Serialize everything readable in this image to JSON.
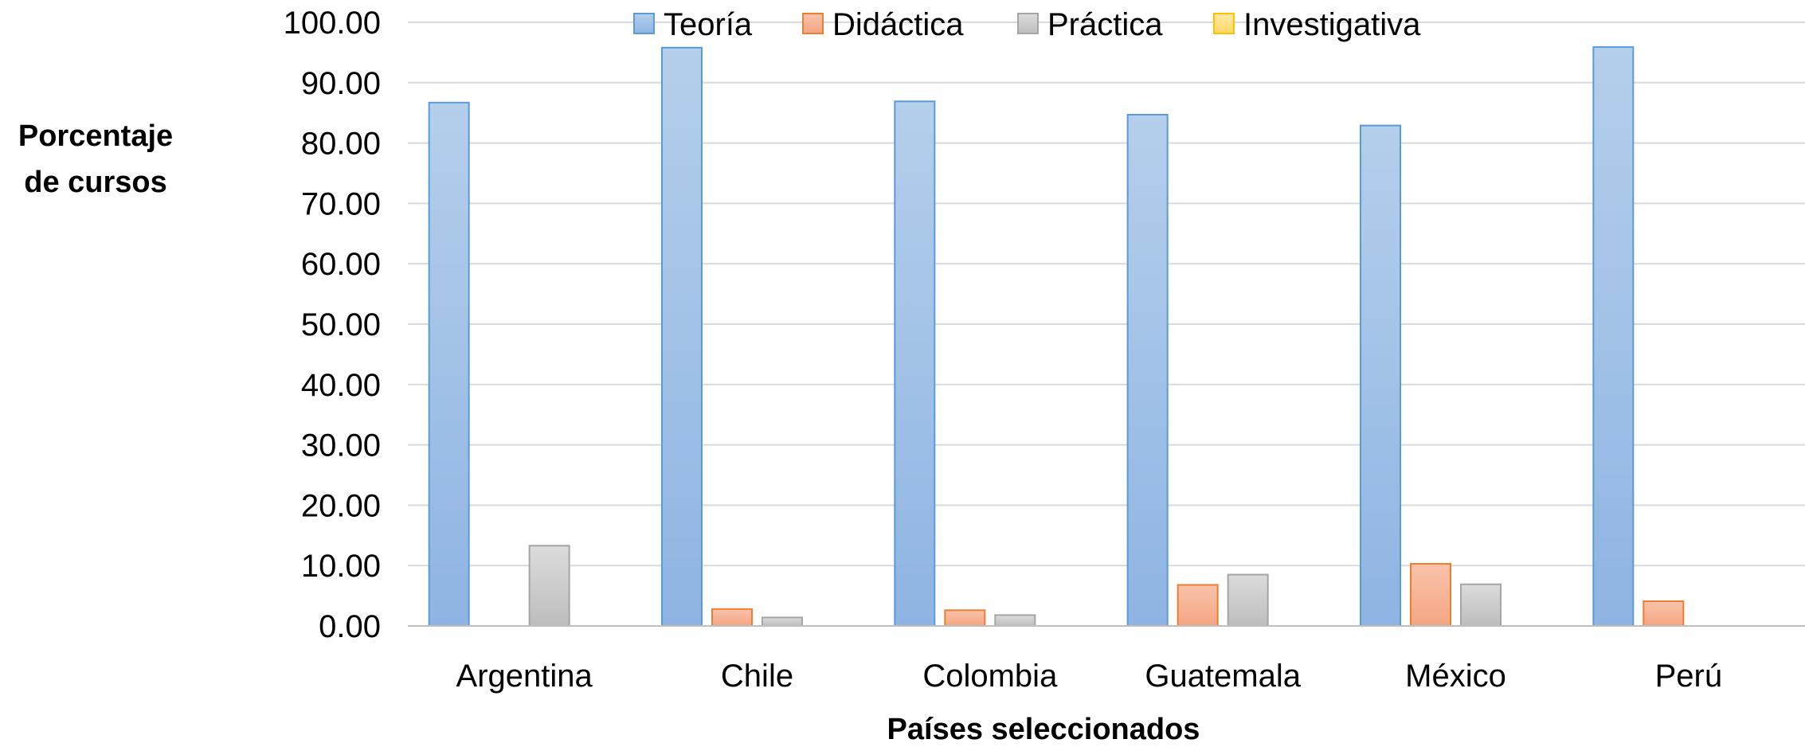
{
  "chart_data": {
    "type": "bar",
    "title": "",
    "xlabel": "Países seleccionados",
    "ylabel_lines": [
      "Porcentaje",
      "de cursos"
    ],
    "ylim": [
      0,
      100
    ],
    "yticks": [
      "0.00",
      "10.00",
      "20.00",
      "30.00",
      "40.00",
      "50.00",
      "60.00",
      "70.00",
      "80.00",
      "90.00",
      "100.00"
    ],
    "grid": true,
    "legend_position": "top",
    "categories": [
      "Argentina",
      "Chile",
      "Colombia",
      "Guatemala",
      "México",
      "Perú"
    ],
    "series": [
      {
        "name": "Teoría",
        "values": [
          86.7,
          95.8,
          86.9,
          84.7,
          82.9,
          95.9
        ],
        "color": "#9dc3e6",
        "border": "#5b9bd5"
      },
      {
        "name": "Didáctica",
        "values": [
          0,
          2.8,
          2.6,
          6.8,
          10.3,
          4.1
        ],
        "color": "#f8b79a",
        "border": "#ed7d31"
      },
      {
        "name": "Práctica",
        "values": [
          13.3,
          1.4,
          1.8,
          8.5,
          6.9,
          0
        ],
        "color": "#cfcfcf",
        "border": "#a5a5a5"
      },
      {
        "name": "Investigativa",
        "values": [
          0,
          0,
          0,
          0,
          0,
          0
        ],
        "color": "#ffe699",
        "border": "#ffc000"
      }
    ]
  }
}
